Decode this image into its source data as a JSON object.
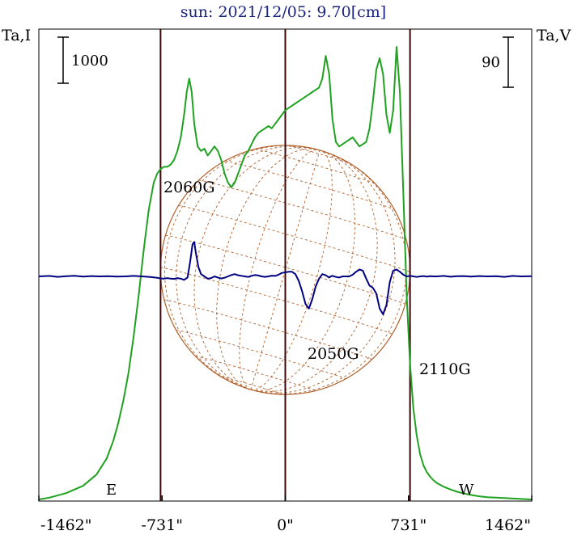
{
  "colors": {
    "title": "#1a237e",
    "intensity": "#1fa21f",
    "polarization": "#000080",
    "disk": "#b0612c",
    "limb_lines": "#3a0808",
    "frame": "#000000"
  },
  "chart_data": {
    "type": "line",
    "title": "sun: 2021/12/05: 9.70[cm]",
    "left_axis_label": "Ta,I",
    "right_axis_label": "Ta,V",
    "left_scale_bar": "1000",
    "right_scale_bar": "90",
    "xlim": [
      -1462,
      1462
    ],
    "x_unit": "arcsec",
    "x_ticks": [
      -1462,
      -731,
      0,
      731,
      1462
    ],
    "x_tick_labels": [
      "-1462\"",
      "-731\"",
      "0\"",
      "731\"",
      "1462\""
    ],
    "limb_markers": [
      {
        "x": -740,
        "label": "E"
      },
      {
        "x": 740,
        "label": "W"
      }
    ],
    "center_marker": {
      "x": 0
    },
    "solar_radius_arcsec": 740,
    "annotations": [
      {
        "text": "2060G",
        "x": -550,
        "y_frac": 0.68
      },
      {
        "text": "2050G",
        "x": 265,
        "y_frac": 0.225
      },
      {
        "text": "2110G",
        "x": 725,
        "y_frac": 0.205
      }
    ],
    "series": [
      {
        "id": "intensity",
        "color": "#1fa21f",
        "x": [
          -1462,
          -1400,
          -1300,
          -1200,
          -1120,
          -1060,
          -1020,
          -990,
          -960,
          -930,
          -900,
          -870,
          -840,
          -810,
          -780,
          -760,
          -740,
          -720,
          -700,
          -680,
          -660,
          -640,
          -620,
          -600,
          -585,
          -570,
          -555,
          -540,
          -520,
          -500,
          -480,
          -460,
          -440,
          -420,
          -400,
          -380,
          -360,
          -340,
          -320,
          -300,
          -280,
          -260,
          -240,
          -220,
          -200,
          -180,
          -160,
          -140,
          -120,
          -100,
          -80,
          -60,
          -40,
          -20,
          0,
          20,
          40,
          60,
          80,
          100,
          120,
          140,
          160,
          180,
          200,
          220,
          240,
          260,
          280,
          300,
          320,
          340,
          360,
          380,
          400,
          420,
          440,
          460,
          480,
          500,
          520,
          540,
          560,
          580,
          600,
          620,
          640,
          660,
          680,
          700,
          720,
          740,
          760,
          780,
          800,
          820,
          840,
          860,
          880,
          900,
          940,
          980,
          1020,
          1060,
          1100,
          1150,
          1200,
          1300,
          1400,
          1462
        ],
        "y": [
          0.0,
          0.004,
          0.014,
          0.03,
          0.055,
          0.09,
          0.13,
          0.17,
          0.22,
          0.28,
          0.36,
          0.45,
          0.55,
          0.64,
          0.7,
          0.72,
          0.73,
          0.735,
          0.735,
          0.74,
          0.75,
          0.77,
          0.8,
          0.85,
          0.9,
          0.93,
          0.9,
          0.83,
          0.78,
          0.77,
          0.775,
          0.76,
          0.77,
          0.78,
          0.77,
          0.75,
          0.72,
          0.7,
          0.69,
          0.7,
          0.72,
          0.74,
          0.76,
          0.77,
          0.785,
          0.8,
          0.81,
          0.815,
          0.82,
          0.825,
          0.82,
          0.83,
          0.84,
          0.85,
          0.86,
          0.865,
          0.87,
          0.875,
          0.88,
          0.885,
          0.89,
          0.895,
          0.9,
          0.905,
          0.91,
          0.93,
          0.98,
          0.94,
          0.84,
          0.79,
          0.78,
          0.785,
          0.79,
          0.795,
          0.8,
          0.79,
          0.78,
          0.785,
          0.79,
          0.82,
          0.88,
          0.95,
          0.975,
          0.94,
          0.85,
          0.81,
          0.86,
          1.0,
          0.9,
          0.68,
          0.45,
          0.3,
          0.2,
          0.14,
          0.1,
          0.075,
          0.06,
          0.05,
          0.042,
          0.036,
          0.028,
          0.022,
          0.017,
          0.013,
          0.01,
          0.007,
          0.005,
          0.003,
          0.001,
          0.0
        ]
      },
      {
        "id": "polarization",
        "color": "#000080",
        "x": [
          -1462,
          -1400,
          -1350,
          -1300,
          -1250,
          -1200,
          -1150,
          -1100,
          -1050,
          -1000,
          -950,
          -900,
          -850,
          -800,
          -760,
          -740,
          -720,
          -700,
          -680,
          -660,
          -640,
          -620,
          -600,
          -580,
          -565,
          -550,
          -540,
          -530,
          -515,
          -500,
          -480,
          -460,
          -440,
          -420,
          -400,
          -380,
          -360,
          -340,
          -320,
          -300,
          -280,
          -260,
          -240,
          -220,
          -200,
          -180,
          -160,
          -140,
          -120,
          -100,
          -80,
          -60,
          -40,
          -20,
          0,
          20,
          40,
          60,
          80,
          100,
          120,
          140,
          160,
          180,
          200,
          220,
          240,
          260,
          270,
          280,
          300,
          320,
          340,
          360,
          380,
          400,
          420,
          440,
          460,
          480,
          500,
          520,
          540,
          560,
          580,
          600,
          620,
          640,
          660,
          680,
          700,
          720,
          740,
          760,
          780,
          800,
          820,
          840,
          860,
          880,
          900,
          940,
          980,
          1020,
          1060,
          1100,
          1150,
          1200,
          1250,
          1300,
          1350,
          1400,
          1462
        ],
        "y": [
          0.0,
          0.004,
          -0.004,
          0.002,
          0.005,
          -0.002,
          0.003,
          0.0,
          0.002,
          -0.002,
          0.0,
          0.004,
          0.0,
          -0.005,
          -0.012,
          -0.018,
          -0.02,
          -0.015,
          -0.02,
          -0.022,
          -0.015,
          -0.02,
          -0.03,
          -0.01,
          0.12,
          0.28,
          0.3,
          0.2,
          0.08,
          0.02,
          0.0,
          -0.02,
          -0.015,
          0.0,
          -0.01,
          -0.018,
          -0.012,
          0.0,
          0.012,
          0.02,
          0.01,
          0.005,
          0.0,
          -0.005,
          0.005,
          0.012,
          0.008,
          0.0,
          -0.004,
          0.0,
          0.006,
          0.004,
          0.015,
          0.03,
          0.035,
          0.04,
          0.04,
          0.02,
          -0.04,
          -0.13,
          -0.24,
          -0.28,
          -0.2,
          -0.09,
          -0.02,
          0.02,
          0.01,
          -0.01,
          0.0,
          0.005,
          -0.005,
          -0.01,
          0.0,
          0.0,
          0.0,
          0.015,
          0.04,
          0.06,
          0.05,
          -0.02,
          -0.08,
          -0.1,
          -0.15,
          -0.28,
          -0.33,
          -0.25,
          -0.05,
          0.05,
          0.06,
          0.04,
          0.015,
          0.0,
          0.005,
          0.0,
          -0.005,
          0.0,
          0.003,
          -0.002,
          0.002,
          0.0,
          0.0,
          0.004,
          -0.003,
          0.002,
          0.003,
          -0.002,
          0.003,
          0.0,
          0.002,
          -0.004,
          0.004,
          0.0,
          0.002
        ]
      }
    ]
  }
}
